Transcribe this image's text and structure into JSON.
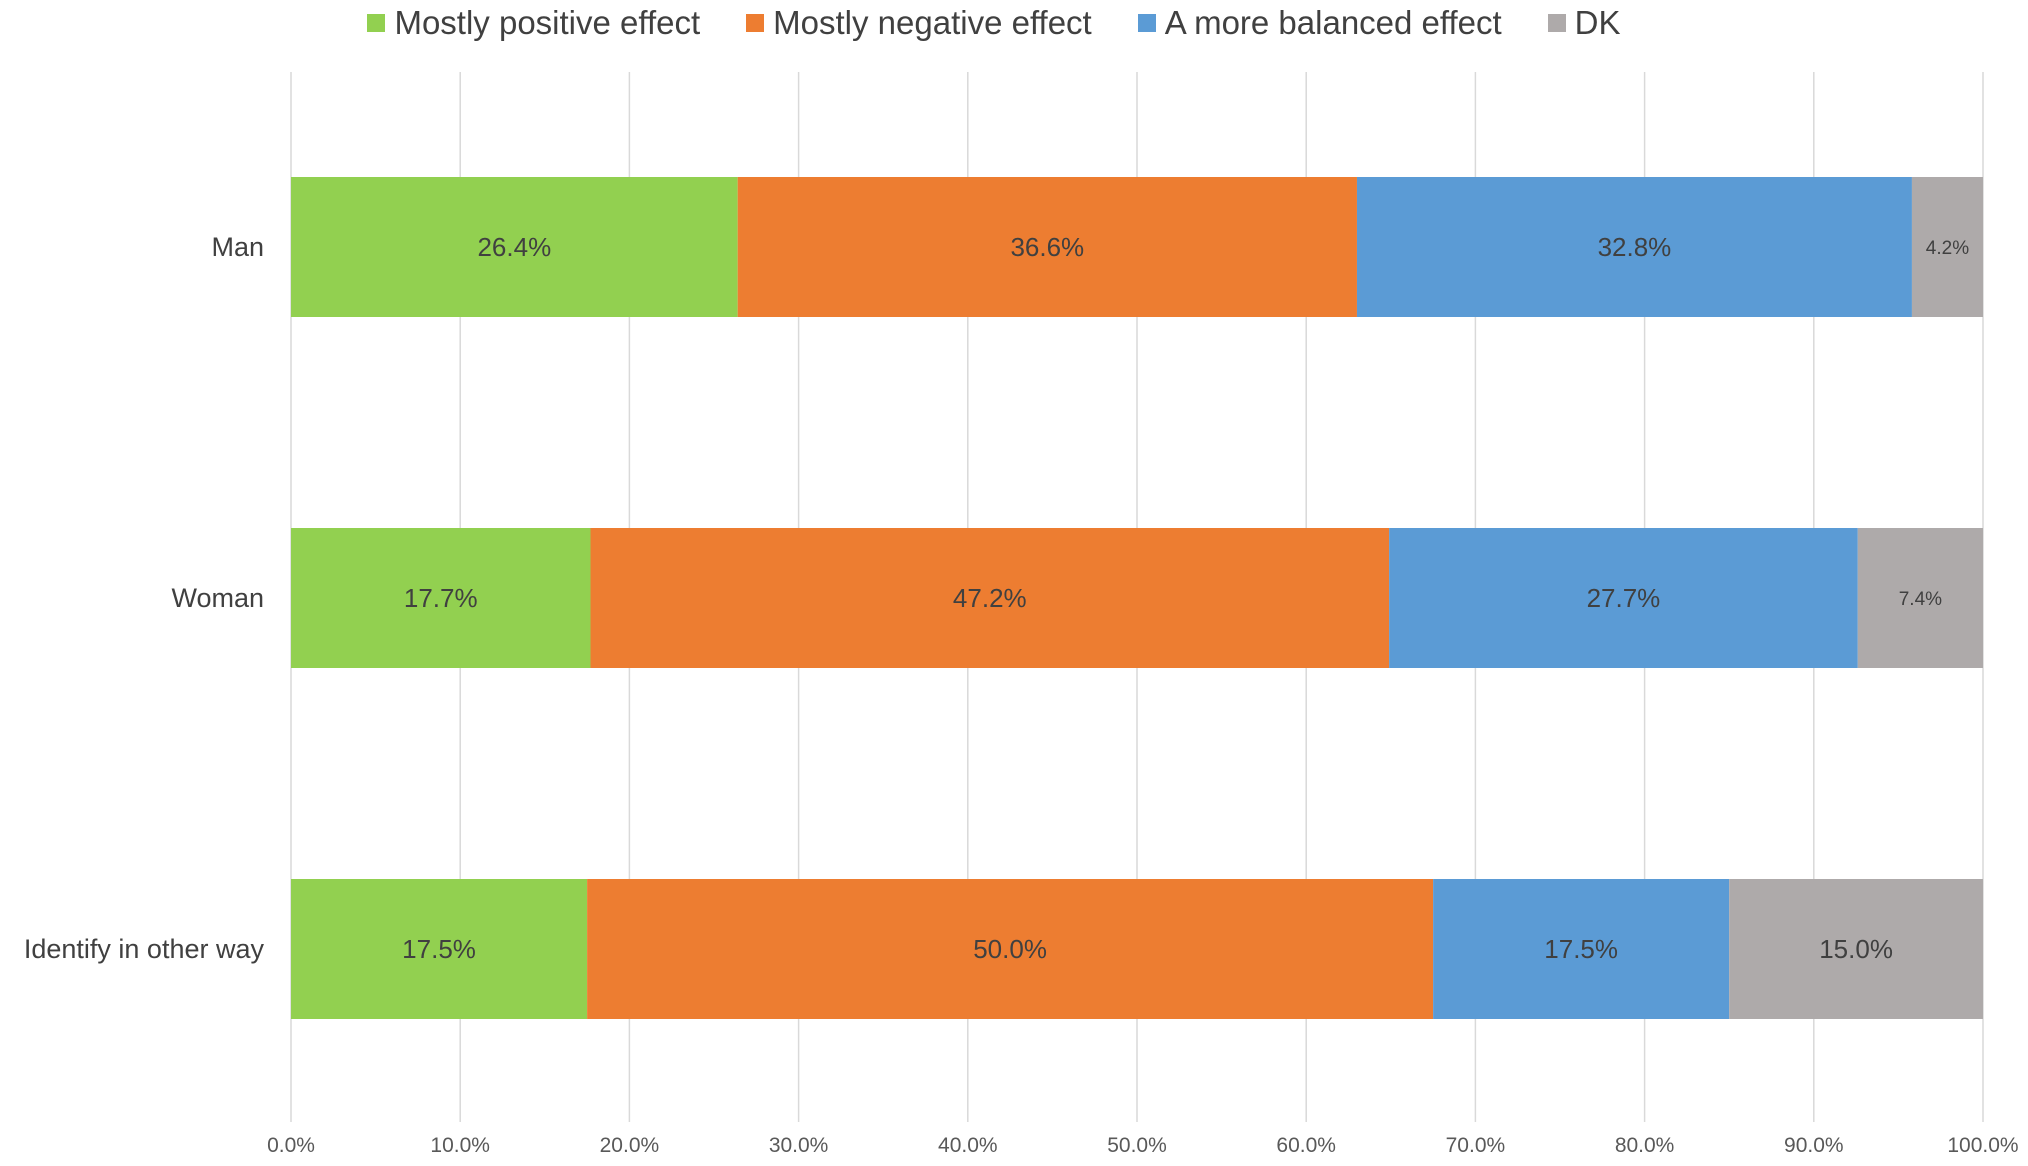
{
  "chart_data": {
    "type": "bar",
    "orientation": "horizontal",
    "stacked": true,
    "categories": [
      "Man",
      "Woman",
      "Identify in other way"
    ],
    "series": [
      {
        "name": "Mostly positive effect",
        "color": "#92d050",
        "values": [
          26.4,
          17.7,
          17.5
        ],
        "labels": [
          "26.4%",
          "17.7%",
          "17.5%"
        ]
      },
      {
        "name": "Mostly negative effect",
        "color": "#ed7d31",
        "values": [
          36.6,
          47.2,
          50.0
        ],
        "labels": [
          "36.6%",
          "47.2%",
          "50.0%"
        ]
      },
      {
        "name": "A more balanced effect",
        "color": "#5b9bd5",
        "values": [
          32.8,
          27.7,
          17.5
        ],
        "labels": [
          "32.8%",
          "27.7%",
          "17.5%"
        ]
      },
      {
        "name": "DK",
        "color": "#aeaaaa",
        "values": [
          4.2,
          7.4,
          15.0
        ],
        "labels": [
          "4.2%",
          "7.4%",
          "15.0%"
        ]
      }
    ],
    "xlim": [
      0,
      100
    ],
    "x_ticks": [
      0,
      10,
      20,
      30,
      40,
      50,
      60,
      70,
      80,
      90,
      100
    ],
    "x_tick_labels": [
      "0.0%",
      "10.0%",
      "20.0%",
      "30.0%",
      "40.0%",
      "50.0%",
      "60.0%",
      "70.0%",
      "80.0%",
      "90.0%",
      "100.0%"
    ],
    "grid": "vertical",
    "legend_position": "top-center",
    "title": "",
    "xlabel": "",
    "ylabel": ""
  }
}
